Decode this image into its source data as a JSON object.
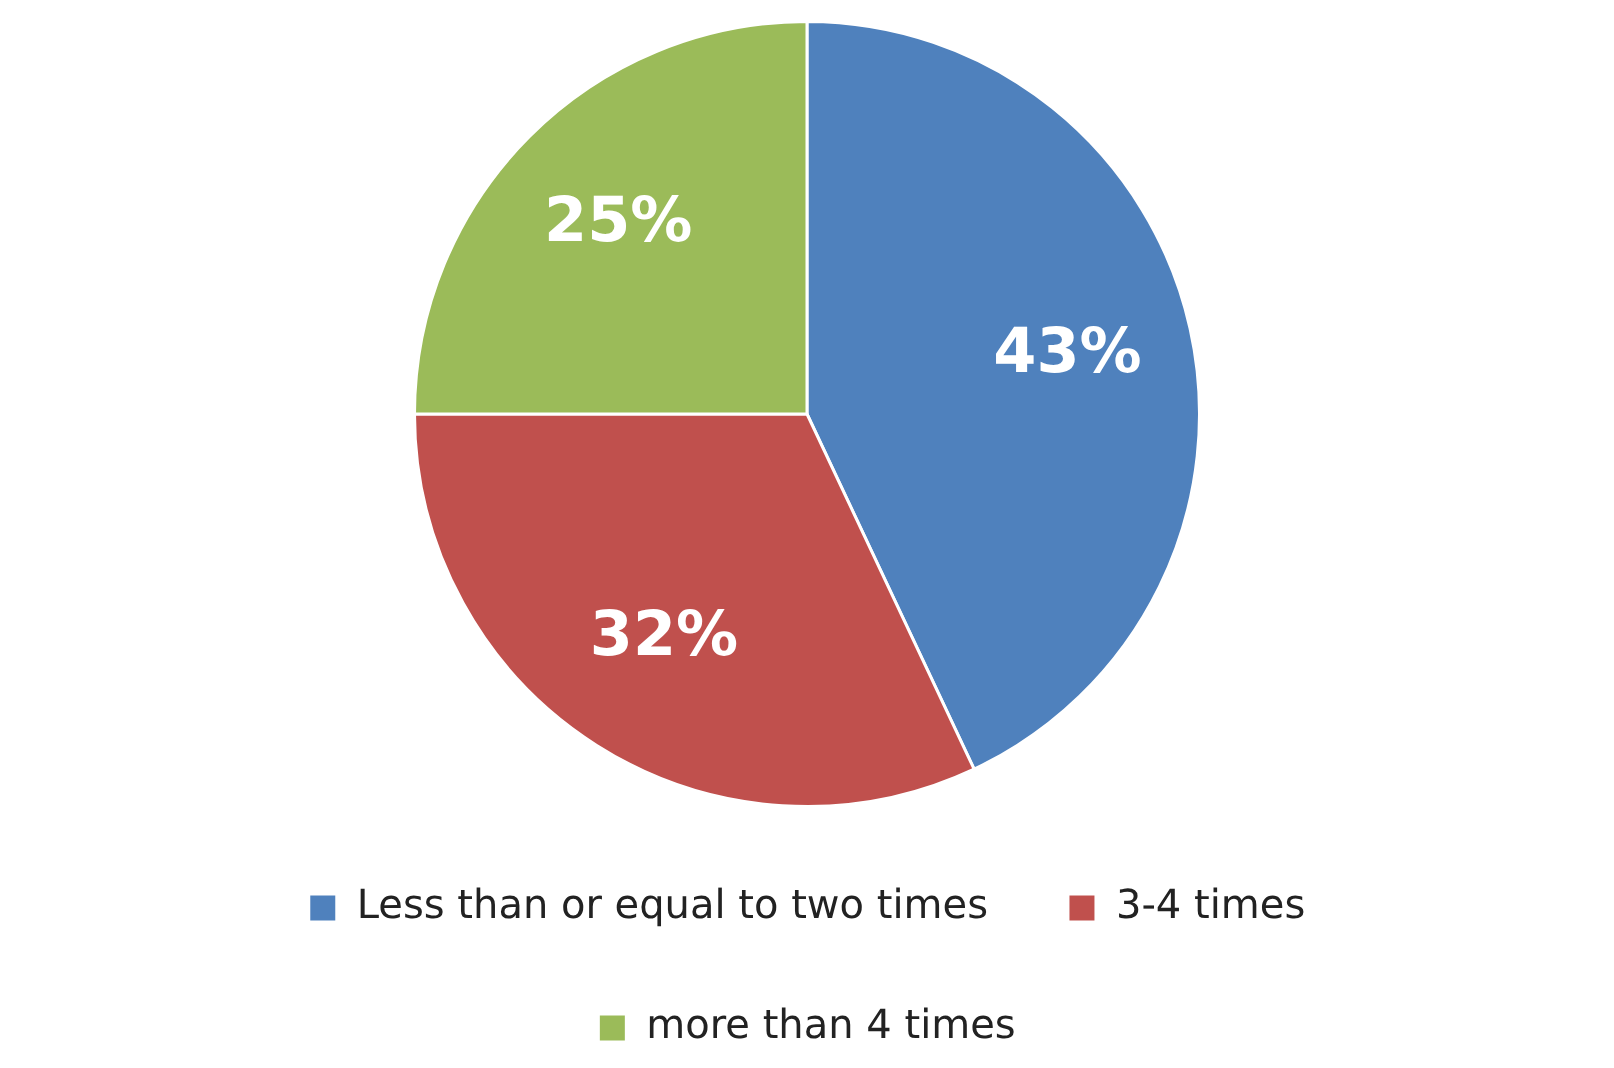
{
  "chart_data": {
    "type": "pie",
    "categories": [
      "Less than or equal to two times",
      "3-4 times",
      "more than 4 times"
    ],
    "values": [
      43,
      32,
      25
    ],
    "colors": [
      "#4f81bd",
      "#c0504d",
      "#9bbb59"
    ],
    "value_labels": [
      "43%",
      "32%",
      "25%"
    ],
    "legend": "bottom"
  }
}
